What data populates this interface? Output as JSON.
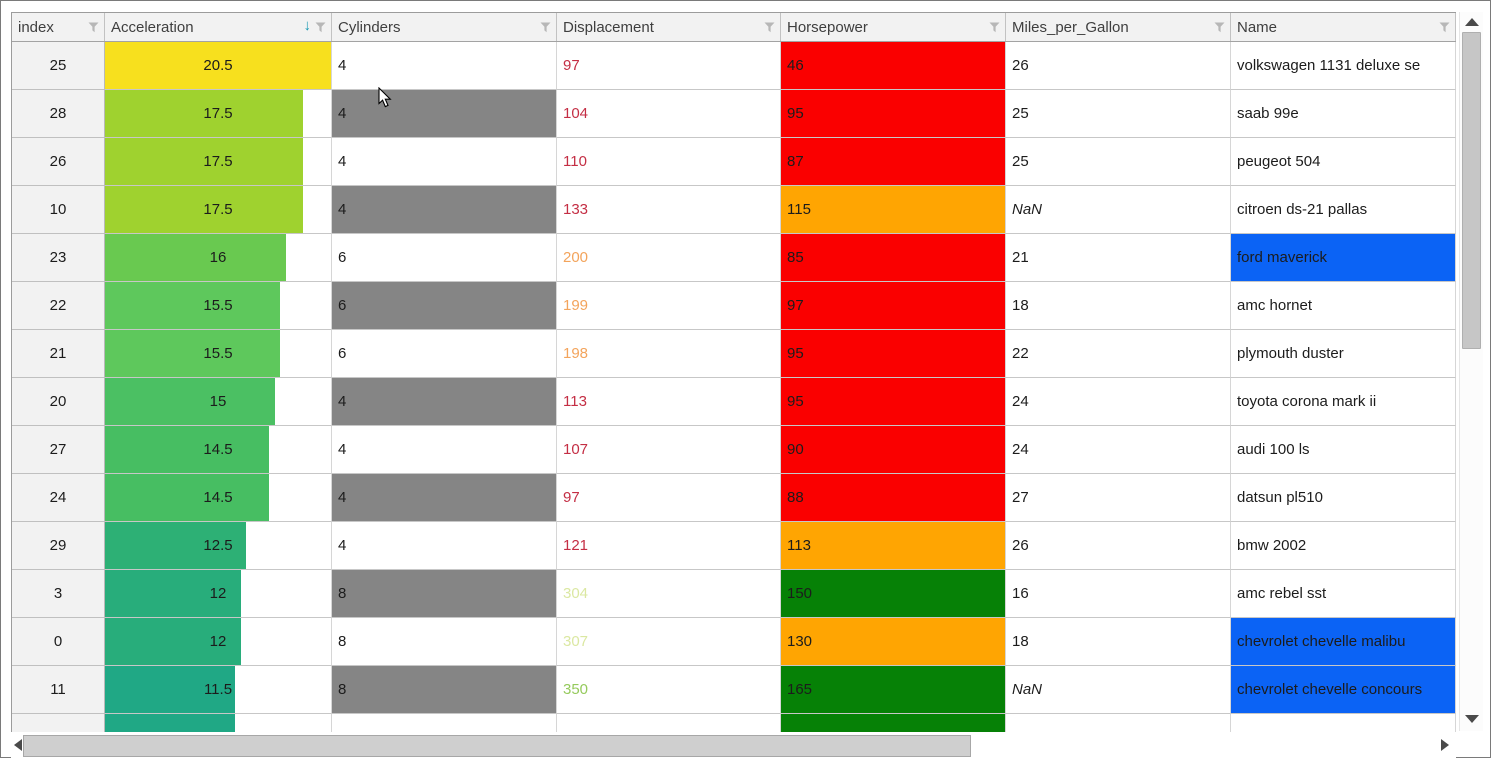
{
  "grid": {
    "columns": [
      {
        "label": "index",
        "filter_icon": "funnel"
      },
      {
        "label": "Acceleration",
        "filter_icon": "funnel",
        "sorted": "descending"
      },
      {
        "label": "Cylinders",
        "filter_icon": "funnel"
      },
      {
        "label": "Displacement",
        "filter_icon": "funnel"
      },
      {
        "label": "Horsepower",
        "filter_icon": "funnel"
      },
      {
        "label": "Miles_per_Gallon",
        "filter_icon": "funnel"
      },
      {
        "label": "Name",
        "filter_icon": "funnel"
      }
    ],
    "sort_icon": "↓",
    "palette": {
      "header_bg": "#f2f2f2",
      "index_bg": "#f2f2f2",
      "gray_cell": "#858585",
      "selected_blue": "#0b63f5",
      "hp_red": "#fa0000",
      "hp_orange": "#ffa502",
      "hp_green": "#068106",
      "sort_arrow": "#1899b3"
    },
    "rows": [
      {
        "index": "25",
        "acceleration": {
          "value": "20.5",
          "bar_pct": 100,
          "bar_color": "#f7e01e"
        },
        "cylinders": {
          "value": "4",
          "gray": false
        },
        "displacement": {
          "value": "97",
          "text_color": "#c42e44"
        },
        "horsepower": {
          "value": "46",
          "bg": "#fa0000"
        },
        "miles_per_gallon": {
          "value": "26",
          "is_nan": false
        },
        "name": {
          "value": "volkswagen 1131 deluxe se",
          "selected": false
        }
      },
      {
        "index": "28",
        "acceleration": {
          "value": "17.5",
          "bar_pct": 87.5,
          "bar_color": "#9fd22f"
        },
        "cylinders": {
          "value": "4",
          "gray": true
        },
        "displacement": {
          "value": "104",
          "text_color": "#c42e44"
        },
        "horsepower": {
          "value": "95",
          "bg": "#fa0000"
        },
        "miles_per_gallon": {
          "value": "25",
          "is_nan": false
        },
        "name": {
          "value": "saab 99e",
          "selected": false
        }
      },
      {
        "index": "26",
        "acceleration": {
          "value": "17.5",
          "bar_pct": 87.5,
          "bar_color": "#9fd22f"
        },
        "cylinders": {
          "value": "4",
          "gray": false
        },
        "displacement": {
          "value": "110",
          "text_color": "#c42e44"
        },
        "horsepower": {
          "value": "87",
          "bg": "#fa0000"
        },
        "miles_per_gallon": {
          "value": "25",
          "is_nan": false
        },
        "name": {
          "value": "peugeot 504",
          "selected": false
        }
      },
      {
        "index": "10",
        "acceleration": {
          "value": "17.5",
          "bar_pct": 87.5,
          "bar_color": "#9fd22f"
        },
        "cylinders": {
          "value": "4",
          "gray": true
        },
        "displacement": {
          "value": "133",
          "text_color": "#c42e44"
        },
        "horsepower": {
          "value": "115",
          "bg": "#ffa502"
        },
        "miles_per_gallon": {
          "value": "NaN",
          "is_nan": true
        },
        "name": {
          "value": "citroen ds-21 pallas",
          "selected": false
        }
      },
      {
        "index": "23",
        "acceleration": {
          "value": "16",
          "bar_pct": 80,
          "bar_color": "#69c950"
        },
        "cylinders": {
          "value": "6",
          "gray": false
        },
        "displacement": {
          "value": "200",
          "text_color": "#f3a45c"
        },
        "horsepower": {
          "value": "85",
          "bg": "#fa0000"
        },
        "miles_per_gallon": {
          "value": "21",
          "is_nan": false
        },
        "name": {
          "value": "ford maverick",
          "selected": true
        }
      },
      {
        "index": "22",
        "acceleration": {
          "value": "15.5",
          "bar_pct": 77.5,
          "bar_color": "#5ec85c"
        },
        "cylinders": {
          "value": "6",
          "gray": true
        },
        "displacement": {
          "value": "199",
          "text_color": "#f3a45c"
        },
        "horsepower": {
          "value": "97",
          "bg": "#fa0000"
        },
        "miles_per_gallon": {
          "value": "18",
          "is_nan": false
        },
        "name": {
          "value": "amc hornet",
          "selected": false
        }
      },
      {
        "index": "21",
        "acceleration": {
          "value": "15.5",
          "bar_pct": 77.5,
          "bar_color": "#5ec85c"
        },
        "cylinders": {
          "value": "6",
          "gray": false
        },
        "displacement": {
          "value": "198",
          "text_color": "#f3a45c"
        },
        "horsepower": {
          "value": "95",
          "bg": "#fa0000"
        },
        "miles_per_gallon": {
          "value": "22",
          "is_nan": false
        },
        "name": {
          "value": "plymouth duster",
          "selected": false
        }
      },
      {
        "index": "20",
        "acceleration": {
          "value": "15",
          "bar_pct": 75,
          "bar_color": "#4bc063"
        },
        "cylinders": {
          "value": "4",
          "gray": true
        },
        "displacement": {
          "value": "113",
          "text_color": "#c42e44"
        },
        "horsepower": {
          "value": "95",
          "bg": "#fa0000"
        },
        "miles_per_gallon": {
          "value": "24",
          "is_nan": false
        },
        "name": {
          "value": "toyota corona mark ii",
          "selected": false
        }
      },
      {
        "index": "27",
        "acceleration": {
          "value": "14.5",
          "bar_pct": 72.5,
          "bar_color": "#47be62"
        },
        "cylinders": {
          "value": "4",
          "gray": false
        },
        "displacement": {
          "value": "107",
          "text_color": "#c42e44"
        },
        "horsepower": {
          "value": "90",
          "bg": "#fa0000"
        },
        "miles_per_gallon": {
          "value": "24",
          "is_nan": false
        },
        "name": {
          "value": "audi 100 ls",
          "selected": false
        }
      },
      {
        "index": "24",
        "acceleration": {
          "value": "14.5",
          "bar_pct": 72.5,
          "bar_color": "#47be62"
        },
        "cylinders": {
          "value": "4",
          "gray": true
        },
        "displacement": {
          "value": "97",
          "text_color": "#c42e44"
        },
        "horsepower": {
          "value": "88",
          "bg": "#fa0000"
        },
        "miles_per_gallon": {
          "value": "27",
          "is_nan": false
        },
        "name": {
          "value": "datsun pl510",
          "selected": false
        }
      },
      {
        "index": "29",
        "acceleration": {
          "value": "12.5",
          "bar_pct": 62.5,
          "bar_color": "#2db075"
        },
        "cylinders": {
          "value": "4",
          "gray": false
        },
        "displacement": {
          "value": "121",
          "text_color": "#c42e44"
        },
        "horsepower": {
          "value": "113",
          "bg": "#ffa502"
        },
        "miles_per_gallon": {
          "value": "26",
          "is_nan": false
        },
        "name": {
          "value": "bmw 2002",
          "selected": false
        }
      },
      {
        "index": "3",
        "acceleration": {
          "value": "12",
          "bar_pct": 60,
          "bar_color": "#28ad7b"
        },
        "cylinders": {
          "value": "8",
          "gray": true
        },
        "displacement": {
          "value": "304",
          "text_color": "#dbe8a2"
        },
        "horsepower": {
          "value": "150",
          "bg": "#068106"
        },
        "miles_per_gallon": {
          "value": "16",
          "is_nan": false
        },
        "name": {
          "value": "amc rebel sst",
          "selected": false
        }
      },
      {
        "index": "0",
        "acceleration": {
          "value": "12",
          "bar_pct": 60,
          "bar_color": "#28ad7b"
        },
        "cylinders": {
          "value": "8",
          "gray": false
        },
        "displacement": {
          "value": "307",
          "text_color": "#dbe8a2"
        },
        "horsepower": {
          "value": "130",
          "bg": "#ffa502"
        },
        "miles_per_gallon": {
          "value": "18",
          "is_nan": false
        },
        "name": {
          "value": "chevrolet chevelle malibu",
          "selected": true
        }
      },
      {
        "index": "11",
        "acceleration": {
          "value": "11.5",
          "bar_pct": 57.5,
          "bar_color": "#20a885"
        },
        "cylinders": {
          "value": "8",
          "gray": true
        },
        "displacement": {
          "value": "350",
          "text_color": "#95ca5c"
        },
        "horsepower": {
          "value": "165",
          "bg": "#068106"
        },
        "miles_per_gallon": {
          "value": "NaN",
          "is_nan": true
        },
        "name": {
          "value": "chevrolet chevelle concours",
          "selected": true
        }
      },
      {
        "index": "",
        "acceleration": {
          "value": "",
          "bar_pct": 57.5,
          "bar_color": "#20a885"
        },
        "cylinders": {
          "value": "",
          "gray": false
        },
        "displacement": {
          "value": "",
          "text_color": ""
        },
        "horsepower": {
          "value": "",
          "bg": "#068106"
        },
        "miles_per_gallon": {
          "value": "",
          "is_nan": false
        },
        "name": {
          "value": "",
          "selected": false
        }
      }
    ]
  }
}
